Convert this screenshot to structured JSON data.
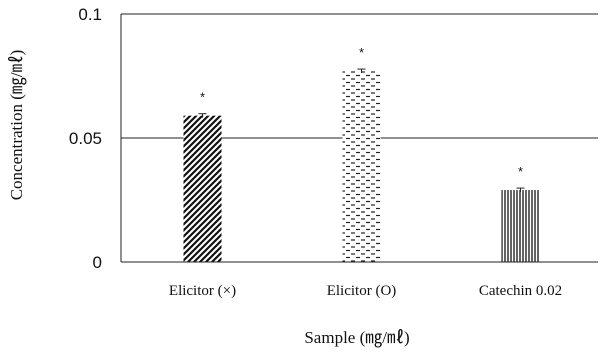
{
  "chart_data": {
    "type": "bar",
    "xlabel": "Sample (㎎/㎖)",
    "ylabel": "Concentration (㎎/㎖)",
    "ylim": [
      0,
      0.1
    ],
    "yticks": [
      {
        "value": 0,
        "label": "0"
      },
      {
        "value": 0.05,
        "label": "0.05"
      },
      {
        "value": 0.1,
        "label": "0.1"
      }
    ],
    "grid": "horizontal lines at 0.05 and 0.1",
    "categories": [
      "Elicitor (×)",
      "Elicitor (O)",
      "Catechin 0.02"
    ],
    "values": [
      0.059,
      0.077,
      0.029
    ],
    "errors": [
      0.0008,
      0.0008,
      0.0008
    ],
    "annotations": [
      "*",
      "*",
      "*"
    ],
    "patterns": [
      "diagonal-hatch",
      "horizontal-dashes",
      "vertical-lines"
    ]
  }
}
